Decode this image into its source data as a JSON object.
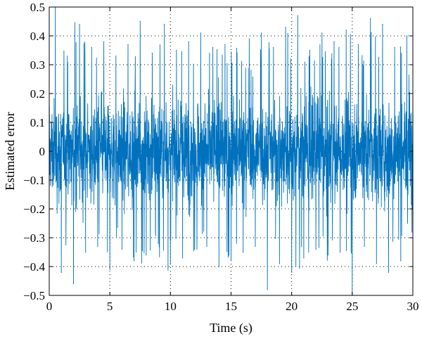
{
  "chart_data": {
    "type": "line",
    "title": "",
    "xlabel": "Time (s)",
    "ylabel": "Estimated error",
    "xlim": [
      0,
      30
    ],
    "ylim": [
      -0.5,
      0.5
    ],
    "xticks": [
      0,
      5,
      10,
      15,
      20,
      25,
      30
    ],
    "xtick_labels": [
      "0",
      "5",
      "10",
      "15",
      "20",
      "25",
      "30"
    ],
    "yticks": [
      -0.5,
      -0.4,
      -0.3,
      -0.2,
      -0.1,
      0,
      0.1,
      0.2,
      0.3,
      0.4,
      0.5
    ],
    "ytick_labels": [
      "−0.5",
      "−0.4",
      "−0.3",
      "−0.2",
      "−0.1",
      "0",
      "0.1",
      "0.2",
      "0.3",
      "0.4",
      "0.5"
    ],
    "grid": "dotted",
    "series_color": "#0072BD",
    "series": [
      {
        "x": [
          0,
          0.5,
          1,
          1.5,
          2,
          2.5,
          3,
          3.5,
          4,
          4.5,
          5,
          5.5,
          6,
          6.5,
          7,
          7.5,
          8,
          8.5,
          9,
          9.5,
          10,
          10.5,
          11,
          11.5,
          12,
          12.5,
          13,
          13.5,
          14,
          14.5,
          15,
          15.5,
          16,
          16.5,
          17,
          17.5,
          18,
          18.5,
          19,
          19.5,
          20,
          20.5,
          21,
          21.5,
          22,
          22.5,
          23,
          23.5,
          24,
          24.5,
          25,
          25.5,
          26,
          26.5,
          27,
          27.5,
          28,
          28.5,
          29,
          29.5,
          30
        ],
        "y": [
          0.05,
          0.5,
          -0.42,
          0.33,
          -0.46,
          0.44,
          -0.35,
          0.36,
          -0.33,
          0.38,
          -0.41,
          0.33,
          -0.34,
          0.37,
          -0.38,
          0.45,
          -0.36,
          0.34,
          -0.32,
          0.44,
          -0.39,
          0.35,
          -0.37,
          0.38,
          -0.34,
          0.41,
          -0.33,
          0.36,
          -0.4,
          0.37,
          -0.38,
          0.34,
          -0.35,
          0.39,
          -0.33,
          0.41,
          -0.48,
          0.36,
          -0.39,
          0.43,
          -0.42,
          0.47,
          -0.37,
          0.35,
          -0.34,
          0.41,
          -0.36,
          0.38,
          -0.35,
          0.42,
          -0.5,
          0.37,
          -0.33,
          0.46,
          -0.39,
          0.44,
          -0.42,
          0.36,
          -0.38,
          0.4,
          -0.2
        ]
      }
    ]
  }
}
